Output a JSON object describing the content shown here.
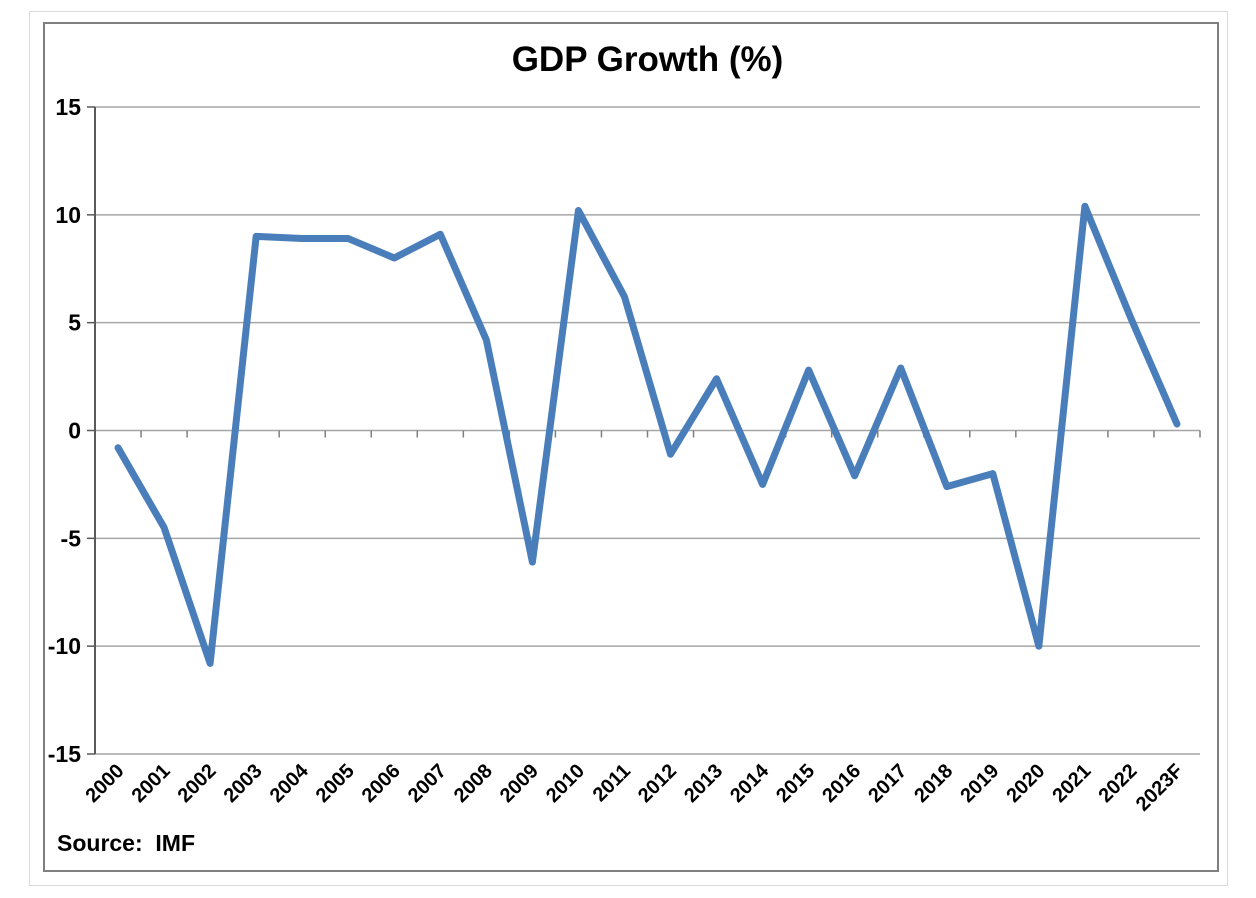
{
  "window": {
    "background": "#ffffff",
    "frame_border": "#d9d9d9"
  },
  "chart": {
    "title": "GDP Growth (%)",
    "source_label": "Source:  IMF",
    "line_color": "#4a7ebb",
    "gridline_color": "#a6a6a6",
    "axis_color": "#595959",
    "tick_color": "#7f7f7f",
    "box_border": "#7f7f7f",
    "text_color": "#000000"
  },
  "chart_data": {
    "type": "line",
    "title": "GDP Growth (%)",
    "categories": [
      "2000",
      "2001",
      "2002",
      "2003",
      "2004",
      "2005",
      "2006",
      "2007",
      "2008",
      "2009",
      "2010",
      "2011",
      "2012",
      "2013",
      "2014",
      "2015",
      "2016",
      "2017",
      "2018",
      "2019",
      "2020",
      "2021",
      "2022",
      "2023F"
    ],
    "series": [
      {
        "name": "GDP Growth (%)",
        "values": [
          -0.8,
          -4.5,
          -10.8,
          9.0,
          8.9,
          8.9,
          8.0,
          9.1,
          4.2,
          -6.1,
          10.2,
          6.2,
          -1.1,
          2.4,
          -2.5,
          2.8,
          -2.1,
          2.9,
          -2.6,
          -2.0,
          -10.0,
          10.4,
          5.2,
          0.3
        ]
      }
    ],
    "xlabel": "",
    "ylabel": "",
    "ylim": [
      -15,
      15
    ],
    "yticks": [
      15,
      10,
      5,
      0,
      -5,
      -10,
      -15
    ],
    "ytick_step": 5,
    "grid": true,
    "legend": false,
    "x_labels_rotation_deg": -45,
    "annotations": [
      "Source:  IMF"
    ]
  }
}
